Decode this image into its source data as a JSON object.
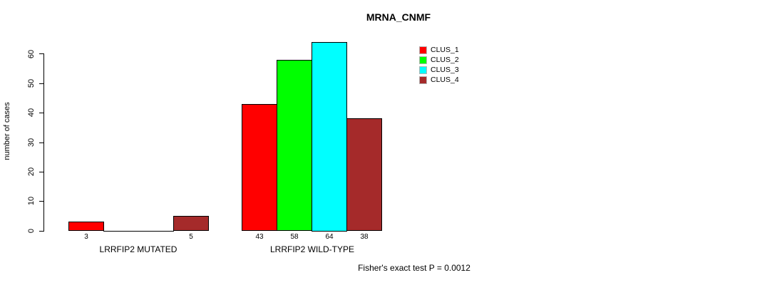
{
  "title": "MRNA_CNMF",
  "y_axis": {
    "label": "number of cases"
  },
  "footer": "Fisher's exact test P = 0.0012",
  "legend": {
    "items": [
      {
        "label": "CLUS_1",
        "color": "#ff0000"
      },
      {
        "label": "CLUS_2",
        "color": "#00ff00"
      },
      {
        "label": "CLUS_3",
        "color": "#00ffff"
      },
      {
        "label": "CLUS_4",
        "color": "#a52a2a"
      }
    ]
  },
  "chart_data": {
    "type": "bar",
    "title": "MRNA_CNMF",
    "xlabel": "",
    "ylabel": "number of cases",
    "ylim": [
      0,
      65
    ],
    "yticks": [
      0,
      10,
      20,
      30,
      40,
      50,
      60
    ],
    "categories": [
      "LRRFIP2 MUTATED",
      "LRRFIP2 WILD-TYPE"
    ],
    "series": [
      {
        "name": "CLUS_1",
        "color": "#ff0000",
        "values": [
          3,
          43
        ]
      },
      {
        "name": "CLUS_2",
        "color": "#00ff00",
        "values": [
          0,
          58
        ]
      },
      {
        "name": "CLUS_3",
        "color": "#00ffff",
        "values": [
          0,
          64
        ]
      },
      {
        "name": "CLUS_4",
        "color": "#a52a2a",
        "values": [
          5,
          38
        ]
      }
    ],
    "bar_value_labels_shown": [
      [
        3,
        null,
        null,
        5
      ],
      [
        43,
        58,
        64,
        38
      ]
    ],
    "show_zero_labels": false,
    "annotation": "Fisher's exact test P = 0.0012",
    "legend_position": "top-right",
    "grid": false,
    "bar_border_color": "#000000",
    "background_color": "#ffffff"
  }
}
